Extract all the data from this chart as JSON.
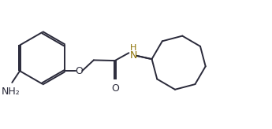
{
  "background_color": "#ffffff",
  "line_color": "#2a2a3a",
  "nh_color": "#8B7000",
  "nh2_color": "#2a2a3a",
  "o_color": "#2a2a3a",
  "line_width": 1.4,
  "font_size_label": 9,
  "font_size_H": 8,
  "figsize": [
    3.45,
    1.64
  ],
  "dpi": 100,
  "xlim": [
    0,
    10.5
  ],
  "ylim": [
    0,
    5.0
  ]
}
